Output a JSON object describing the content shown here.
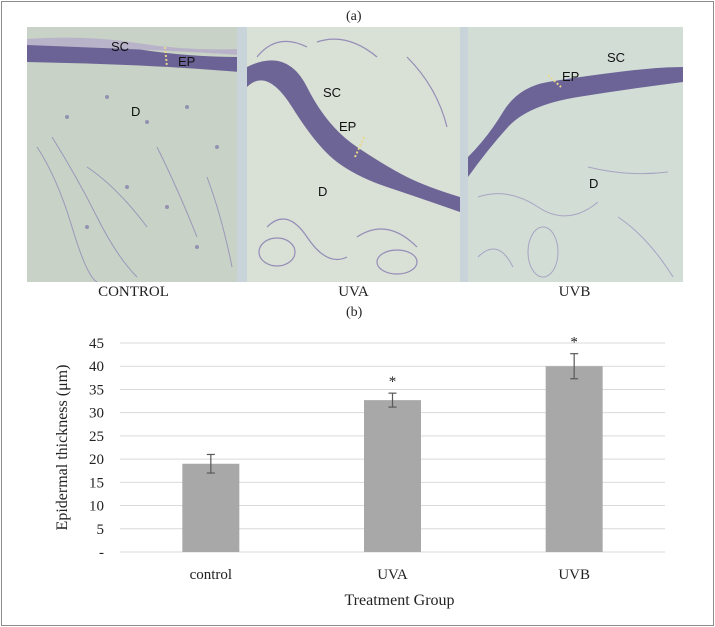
{
  "figure": {
    "label_a": "(a)",
    "label_b": "(b)"
  },
  "micrographs": [
    {
      "caption": "CONTROL",
      "labels": {
        "sc": "SC",
        "ep": "EP",
        "d": "D"
      }
    },
    {
      "caption": "UVA",
      "labels": {
        "sc": "SC",
        "ep": "EP",
        "d": "D"
      }
    },
    {
      "caption": "UVB",
      "labels": {
        "sc": "SC",
        "ep": "EP",
        "d": "D"
      }
    }
  ],
  "colors": {
    "bar": "#a8a8a8",
    "tissue_bg": "#d4ddd6",
    "epidermis": "#5a4f8c",
    "stain": "#8b7fb5"
  },
  "chart_data": {
    "type": "bar",
    "categories": [
      "control",
      "UVA",
      "UVB"
    ],
    "values": [
      19.0,
      32.7,
      40.0
    ],
    "errors": [
      2.0,
      1.5,
      2.7
    ],
    "annotations": [
      "",
      "*",
      "*"
    ],
    "xlabel": "Treatment Group",
    "ylabel": "Epidermal thickness (μm)",
    "ylim": [
      0,
      45
    ],
    "yticks": [
      0,
      5,
      10,
      15,
      20,
      25,
      30,
      35,
      40,
      45
    ],
    "ytick_labels": [
      "-",
      "5",
      "10",
      "15",
      "20",
      "25",
      "30",
      "35",
      "40",
      "45"
    ],
    "grid": true
  }
}
